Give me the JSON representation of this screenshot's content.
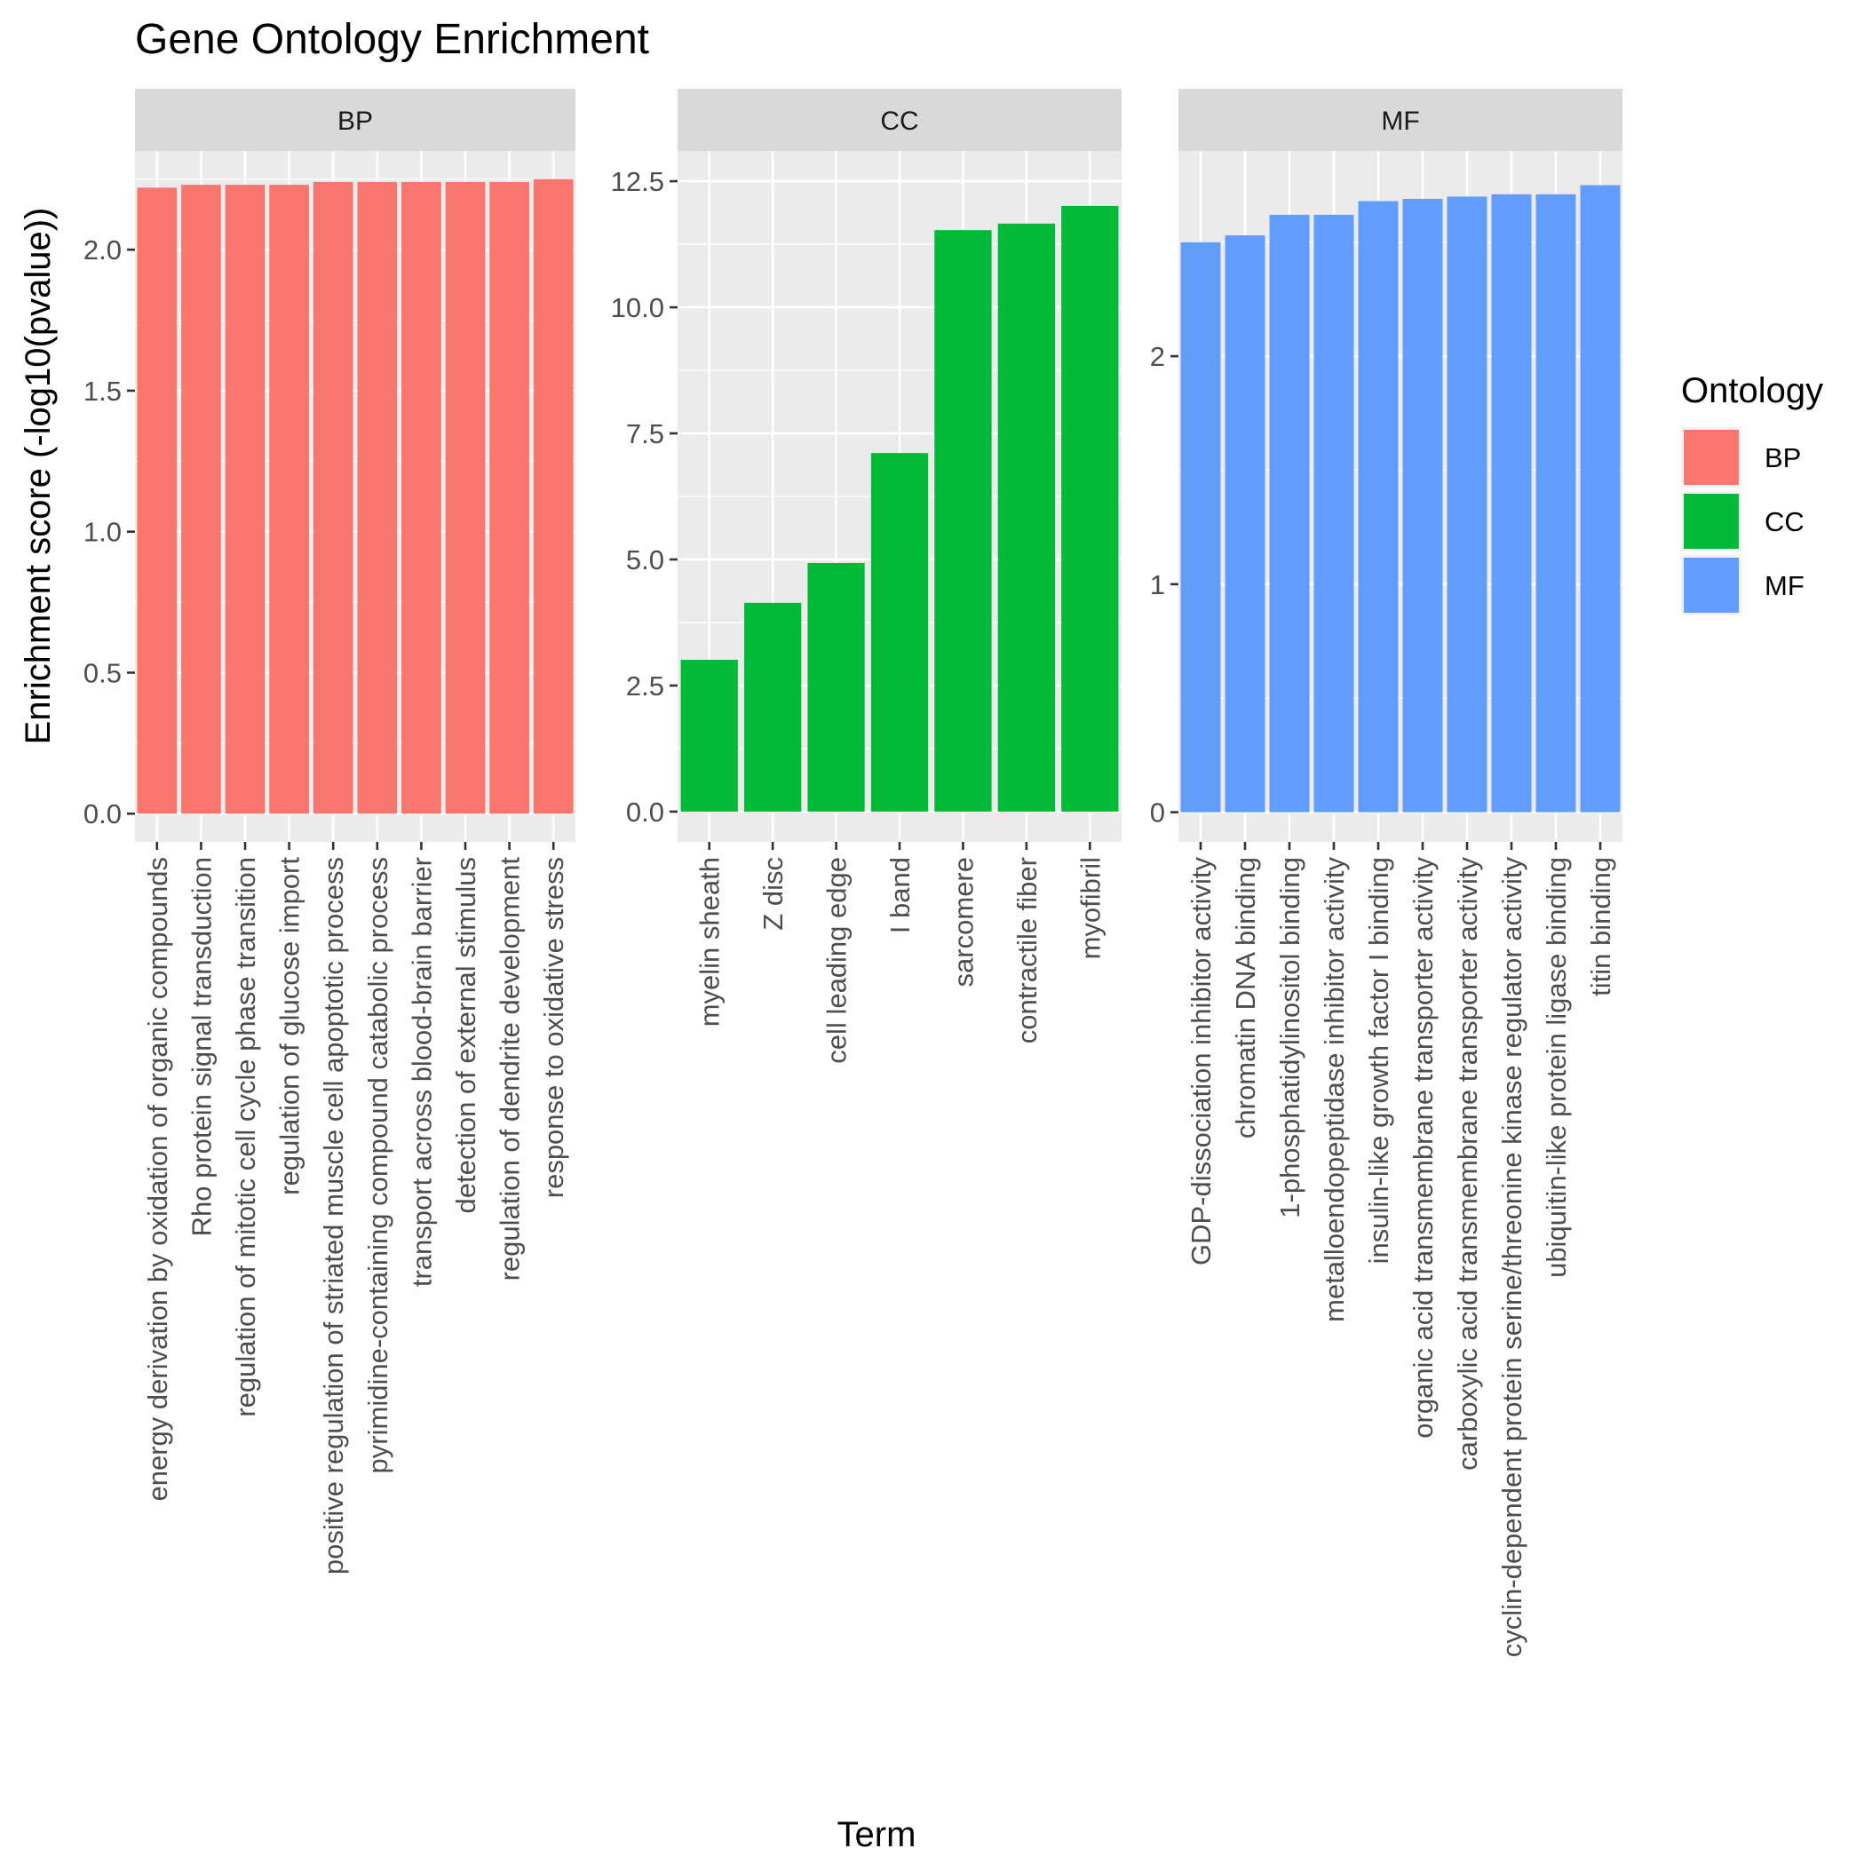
{
  "title": "Gene Ontology Enrichment",
  "xlabel": "Term",
  "ylabel": "Enrichment score (-log10(pvalue))",
  "legend": {
    "title": "Ontology",
    "placement": "right",
    "items": [
      {
        "label": "BP",
        "color": "#F8766D"
      },
      {
        "label": "CC",
        "color": "#00BA38"
      },
      {
        "label": "MF",
        "color": "#619CFF"
      }
    ]
  },
  "chart_data": {
    "type": "bar",
    "title": "Gene Ontology Enrichment",
    "xlabel": "Term",
    "ylabel": "Enrichment score (-log10(pvalue))",
    "facet_scales": "free",
    "legend_placement": "right",
    "grid": true,
    "facets": [
      {
        "name": "BP",
        "color": "#F8766D",
        "ylim": [
          -0.1,
          2.35
        ],
        "yticks": [
          0.0,
          0.5,
          1.0,
          1.5,
          2.0
        ],
        "ytick_labels": [
          "0.0",
          "0.5",
          "1.0",
          "1.5",
          "2.0"
        ],
        "categories": [
          "energy derivation by oxidation of organic compounds",
          "Rho protein signal transduction",
          "regulation of mitotic cell cycle phase transition",
          "regulation of glucose import",
          "positive regulation of striated muscle cell apoptotic process",
          "pyrimidine-containing compound catabolic process",
          "transport across blood-brain barrier",
          "detection of external stimulus",
          "regulation of dendrite development",
          "response to oxidative stress"
        ],
        "values": [
          2.22,
          2.23,
          2.23,
          2.23,
          2.24,
          2.24,
          2.24,
          2.24,
          2.24,
          2.25
        ]
      },
      {
        "name": "CC",
        "color": "#00BA38",
        "ylim": [
          -0.6,
          13.1
        ],
        "yticks": [
          0.0,
          2.5,
          5.0,
          7.5,
          10.0,
          12.5
        ],
        "ytick_labels": [
          "0.0",
          "2.5",
          "5.0",
          "7.5",
          "10.0",
          "12.5"
        ],
        "categories": [
          "myelin sheath",
          "Z disc",
          "cell leading edge",
          "I band",
          "sarcomere",
          "contractile fiber",
          "myofibril"
        ],
        "values": [
          3.01,
          4.14,
          4.93,
          7.11,
          11.53,
          11.66,
          12.01
        ]
      },
      {
        "name": "MF",
        "color": "#619CFF",
        "ylim": [
          -0.13,
          2.9
        ],
        "yticks": [
          0,
          1,
          2
        ],
        "ytick_labels": [
          "0",
          "1",
          "2"
        ],
        "categories": [
          "GDP-dissociation inhibitor activity",
          "chromatin DNA binding",
          "1-phosphatidylinositol binding",
          "metalloendopeptidase inhibitor activity",
          "insulin-like growth factor I binding",
          "organic acid transmembrane transporter activity",
          "carboxylic acid transmembrane transporter activity",
          "cyclin-dependent protein serine/threonine kinase regulator activity",
          "ubiquitin-like protein ligase binding",
          "titin binding"
        ],
        "values": [
          2.5,
          2.53,
          2.62,
          2.62,
          2.68,
          2.69,
          2.7,
          2.71,
          2.71,
          2.75
        ]
      }
    ]
  }
}
